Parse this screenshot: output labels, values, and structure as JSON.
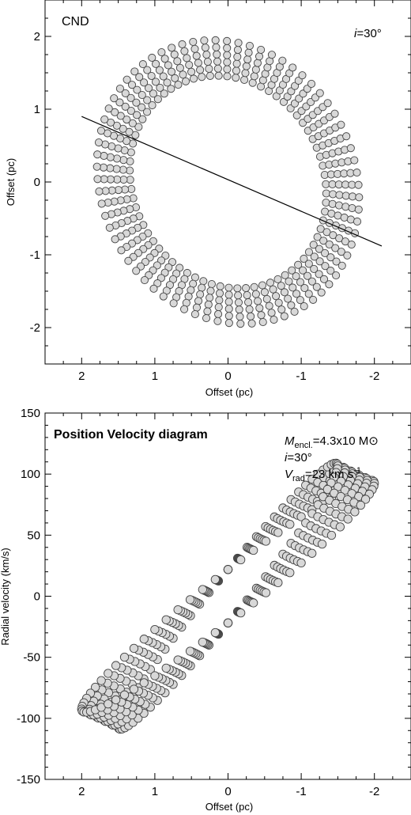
{
  "chart_data": [
    {
      "type": "scatter",
      "panel_label": "CND",
      "annotation": {
        "var": "i",
        "text": "=30°"
      },
      "xlabel": "Offset (pc)",
      "ylabel": "Offset (pc)",
      "xlim": [
        2.5,
        -2.5
      ],
      "ylim": [
        -2.5,
        2.5
      ],
      "x_reversed": true,
      "xticks": [
        2,
        1,
        0,
        -1,
        -2
      ],
      "yticks": [
        -2,
        -1,
        0,
        1,
        2
      ],
      "major_line": {
        "x": [
          2.0,
          -2.1
        ],
        "y": [
          0.9,
          -0.88
        ]
      },
      "ring": {
        "center": [
          0.0,
          0.0
        ],
        "inclination_deg": 30,
        "position_angle_deg": -63,
        "inner_radius_pc": 1.5,
        "outer_radius_pc": 2.0,
        "n_rings": 6,
        "points_per_ring": 72,
        "marker_fill": "#d8d8d8",
        "marker_edge": "#444444"
      }
    },
    {
      "type": "scatter",
      "panel_label": "Position Velocity diagram",
      "annotation_mass": {
        "var": "M",
        "sub": "encl.",
        "text": "=4.3x10 M⊙"
      },
      "annotation_incl": {
        "var": "i",
        "text": "=30°"
      },
      "annotation_vrad": {
        "var": "V",
        "sub": "rad",
        "text": "=23 km s",
        "sup": "-1"
      },
      "xlabel": "Offset (pc)",
      "ylabel": "Radial velocity (km/s)",
      "xlim": [
        2.5,
        -2.5
      ],
      "ylim": [
        -150,
        150
      ],
      "x_reversed": true,
      "xticks": [
        2,
        1,
        0,
        -1,
        -2
      ],
      "yticks": [
        -150,
        -100,
        -50,
        0,
        50,
        100,
        150
      ],
      "model": {
        "enclosed_mass_msun": 4.3,
        "inclination_deg": 30,
        "v_rad_kms": 23
      },
      "marker_fill": "#d8d8d8",
      "marker_edge": "#444444"
    }
  ]
}
